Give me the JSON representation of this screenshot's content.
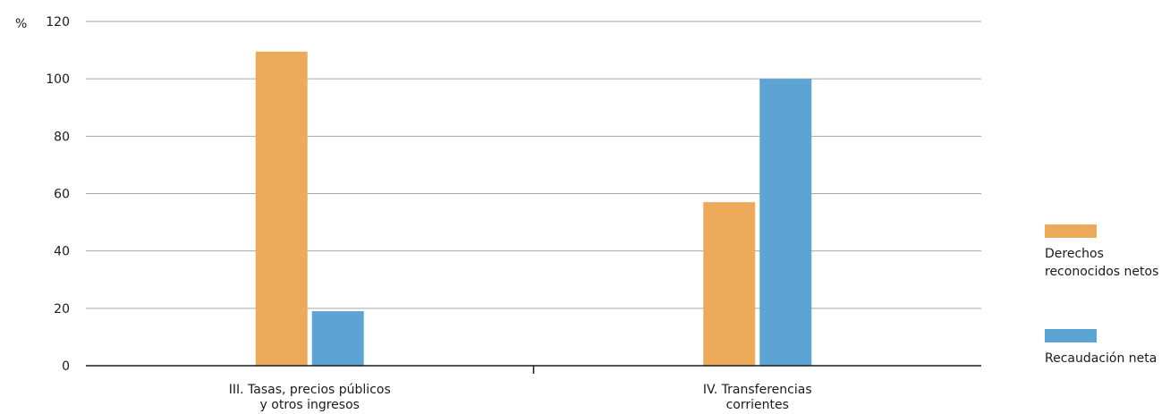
{
  "chart_data": {
    "type": "bar",
    "unit_label": "%",
    "categories": [
      [
        "III.  Tasas, precios públicos",
        "y otros ingresos"
      ],
      [
        "IV. Transferencias",
        "corrientes"
      ]
    ],
    "series": [
      {
        "name": "Derechos reconocidos netos",
        "legend_lines": [
          "Derechos",
          "reconocidos netos"
        ],
        "color": "#edaa5a",
        "values": [
          109.5,
          57
        ]
      },
      {
        "name": "Recaudación neta",
        "legend_lines": [
          "Recaudación neta"
        ],
        "color": "#5ba4d3",
        "values": [
          19,
          100
        ]
      }
    ],
    "yticks": [
      0,
      20,
      40,
      60,
      80,
      100,
      120
    ],
    "ylim": [
      0,
      120
    ],
    "grid": true,
    "legend_position": "right"
  }
}
